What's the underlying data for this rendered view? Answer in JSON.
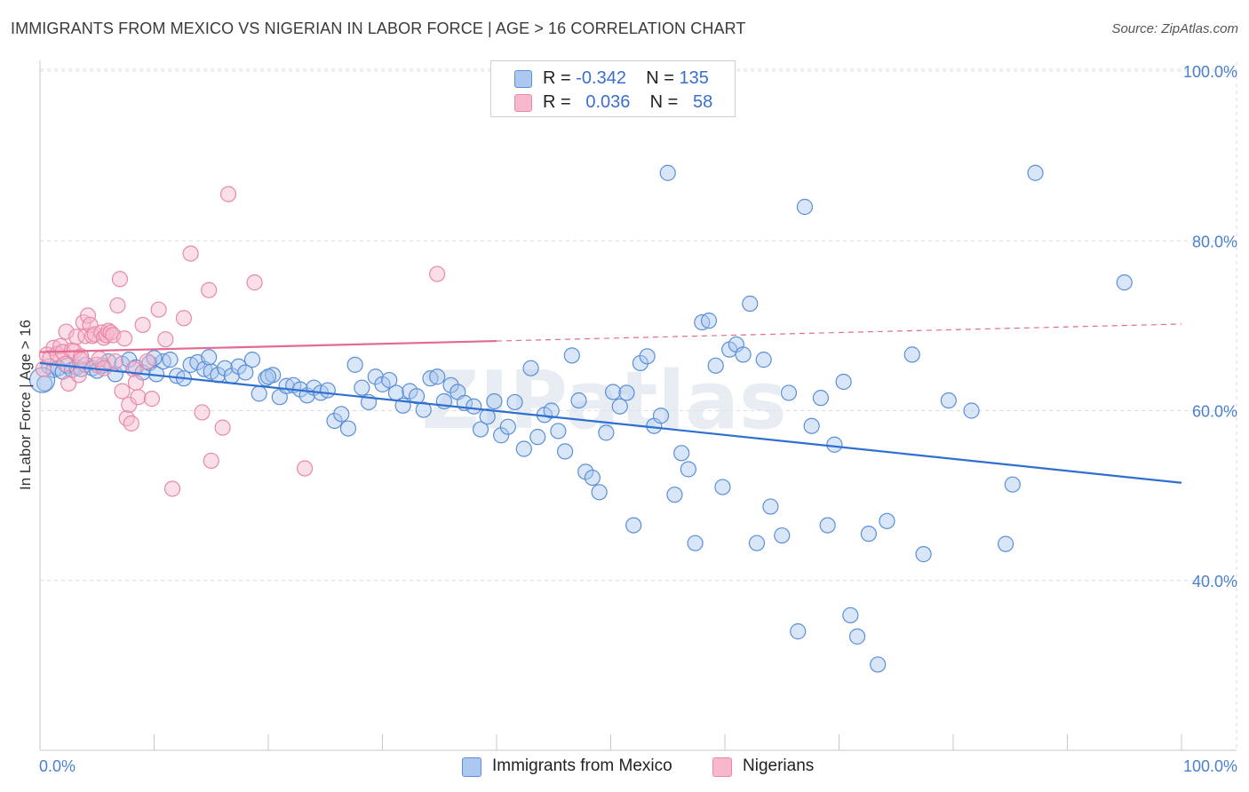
{
  "header": {
    "title": "IMMIGRANTS FROM MEXICO VS NIGERIAN IN LABOR FORCE | AGE > 16 CORRELATION CHART",
    "source": "Source: ZipAtlas.com"
  },
  "legend": {
    "rows": [
      {
        "r_label": "R =",
        "r_value": "-0.342",
        "n_label": "N =",
        "n_value": "135"
      },
      {
        "r_label": "R =",
        "r_value": "0.036",
        "n_label": "N =",
        "n_value": "58"
      }
    ]
  },
  "bottom_legend": {
    "items": [
      {
        "label": "Immigrants from Mexico"
      },
      {
        "label": "Nigerians"
      }
    ]
  },
  "colors": {
    "mexico_fill": "#aac8f0",
    "mexico_stroke": "#5b8fd8",
    "mexico_line": "#2f6fd0",
    "nigerian_fill": "#f7b8cc",
    "nigerian_stroke": "#e889a8",
    "nigerian_line": "#e26a93",
    "tick_text": "#4a7fd0",
    "grid": "#dcdcdc"
  },
  "chart_data": {
    "type": "scatter",
    "title": "IMMIGRANTS FROM MEXICO VS NIGERIAN IN LABOR FORCE | AGE > 16 CORRELATION CHART",
    "xlabel": "",
    "ylabel": "In Labor Force | Age > 16",
    "xlim": [
      0,
      100
    ],
    "ylim": [
      20,
      104
    ],
    "x_tick_labels": [
      "0.0%",
      "100.0%"
    ],
    "y_ticks": [
      40,
      60,
      80,
      100
    ],
    "y_tick_labels": [
      "40.0%",
      "60.0%",
      "80.0%",
      "100.0%"
    ],
    "grid": true,
    "legend_position": "top-center",
    "watermark": "ZIPatlas",
    "series": [
      {
        "name": "Immigrants from Mexico",
        "r": -0.342,
        "n": 135,
        "trend": {
          "x": [
            0,
            100
          ],
          "y": [
            65.6,
            51.5
          ],
          "style": "solid"
        },
        "points": [
          [
            0.4,
            63.2
          ],
          [
            0.8,
            65.2
          ],
          [
            1.2,
            64.8
          ],
          [
            1.6,
            65.0
          ],
          [
            2.0,
            64.6
          ],
          [
            2.4,
            65.3
          ],
          [
            2.8,
            64.8
          ],
          [
            3.2,
            65.1
          ],
          [
            3.6,
            64.9
          ],
          [
            4.0,
            65.4
          ],
          [
            4.6,
            65.0
          ],
          [
            5.0,
            64.7
          ],
          [
            5.5,
            65.3
          ],
          [
            6.0,
            65.8
          ],
          [
            6.6,
            64.3
          ],
          [
            7.2,
            65.5
          ],
          [
            7.8,
            66.0
          ],
          [
            8.4,
            65.1
          ],
          [
            9.0,
            64.5
          ],
          [
            9.6,
            65.6
          ],
          [
            10.2,
            64.3
          ],
          [
            10.8,
            65.8
          ],
          [
            11.4,
            66.0
          ],
          [
            12.0,
            64.1
          ],
          [
            12.6,
            63.8
          ],
          [
            13.2,
            65.4
          ],
          [
            13.8,
            65.7
          ],
          [
            14.4,
            64.9
          ],
          [
            15.0,
            64.6
          ],
          [
            15.6,
            64.2
          ],
          [
            16.2,
            65.0
          ],
          [
            16.8,
            64.1
          ],
          [
            17.4,
            65.2
          ],
          [
            18.0,
            64.5
          ],
          [
            18.6,
            66.0
          ],
          [
            19.2,
            62.0
          ],
          [
            19.8,
            63.8
          ],
          [
            20.4,
            64.2
          ],
          [
            21.0,
            61.6
          ],
          [
            21.6,
            62.9
          ],
          [
            22.2,
            63.0
          ],
          [
            22.8,
            62.5
          ],
          [
            23.4,
            61.8
          ],
          [
            24.0,
            62.7
          ],
          [
            24.6,
            62.1
          ],
          [
            25.2,
            62.4
          ],
          [
            25.8,
            58.8
          ],
          [
            26.4,
            59.6
          ],
          [
            27.0,
            57.9
          ],
          [
            27.6,
            65.4
          ],
          [
            28.2,
            62.7
          ],
          [
            28.8,
            61.0
          ],
          [
            29.4,
            64.0
          ],
          [
            30.0,
            63.1
          ],
          [
            30.6,
            63.6
          ],
          [
            31.2,
            62.1
          ],
          [
            31.8,
            60.6
          ],
          [
            32.4,
            62.3
          ],
          [
            33.0,
            61.7
          ],
          [
            33.6,
            60.1
          ],
          [
            34.2,
            63.8
          ],
          [
            34.8,
            64.0
          ],
          [
            35.4,
            61.1
          ],
          [
            36.0,
            63.0
          ],
          [
            36.6,
            62.2
          ],
          [
            37.2,
            60.9
          ],
          [
            38.0,
            60.5
          ],
          [
            38.6,
            57.8
          ],
          [
            39.2,
            59.3
          ],
          [
            39.8,
            61.1
          ],
          [
            40.4,
            57.1
          ],
          [
            41.0,
            58.1
          ],
          [
            41.6,
            61.0
          ],
          [
            42.4,
            55.5
          ],
          [
            43.0,
            65.0
          ],
          [
            43.6,
            56.9
          ],
          [
            44.2,
            59.5
          ],
          [
            44.8,
            60.0
          ],
          [
            45.4,
            57.6
          ],
          [
            46.0,
            55.2
          ],
          [
            46.6,
            66.5
          ],
          [
            47.2,
            61.2
          ],
          [
            47.8,
            52.8
          ],
          [
            48.4,
            52.1
          ],
          [
            49.0,
            50.4
          ],
          [
            49.6,
            57.4
          ],
          [
            50.2,
            62.2
          ],
          [
            50.8,
            60.5
          ],
          [
            51.4,
            62.1
          ],
          [
            52.0,
            46.5
          ],
          [
            52.6,
            65.6
          ],
          [
            53.2,
            66.4
          ],
          [
            53.8,
            58.2
          ],
          [
            54.4,
            59.4
          ],
          [
            55.0,
            88.0
          ],
          [
            55.6,
            50.1
          ],
          [
            56.2,
            55.0
          ],
          [
            56.8,
            53.1
          ],
          [
            57.4,
            44.4
          ],
          [
            58.0,
            70.4
          ],
          [
            58.6,
            70.6
          ],
          [
            59.2,
            65.3
          ],
          [
            59.8,
            51.0
          ],
          [
            60.4,
            67.2
          ],
          [
            61.0,
            67.8
          ],
          [
            61.6,
            66.6
          ],
          [
            62.2,
            72.6
          ],
          [
            62.8,
            44.4
          ],
          [
            63.4,
            66.0
          ],
          [
            64.0,
            48.7
          ],
          [
            65.0,
            45.3
          ],
          [
            65.6,
            62.1
          ],
          [
            66.4,
            34.0
          ],
          [
            67.0,
            84.0
          ],
          [
            67.6,
            58.2
          ],
          [
            68.4,
            61.5
          ],
          [
            69.0,
            46.5
          ],
          [
            69.6,
            56.0
          ],
          [
            70.4,
            63.4
          ],
          [
            71.0,
            35.9
          ],
          [
            71.6,
            33.4
          ],
          [
            72.6,
            45.5
          ],
          [
            73.4,
            30.1
          ],
          [
            74.2,
            47.0
          ],
          [
            76.4,
            66.6
          ],
          [
            77.4,
            43.1
          ],
          [
            79.6,
            61.2
          ],
          [
            81.6,
            60.0
          ],
          [
            84.6,
            44.3
          ],
          [
            85.2,
            51.3
          ],
          [
            87.2,
            88.0
          ],
          [
            95.0,
            75.1
          ],
          [
            10.0,
            66.2
          ],
          [
            14.8,
            66.3
          ],
          [
            20.0,
            64.0
          ]
        ]
      },
      {
        "name": "Nigerians",
        "r": 0.036,
        "n": 58,
        "trend": {
          "x": [
            0,
            40,
            100
          ],
          "y": [
            66.9,
            68.2,
            70.2
          ],
          "solid_until": 40
        },
        "points": [
          [
            0.3,
            64.9
          ],
          [
            0.6,
            66.6
          ],
          [
            0.9,
            66.2
          ],
          [
            1.2,
            67.4
          ],
          [
            1.5,
            66.7
          ],
          [
            1.8,
            67.6
          ],
          [
            2.0,
            66.9
          ],
          [
            2.3,
            69.3
          ],
          [
            2.5,
            63.2
          ],
          [
            2.8,
            67.1
          ],
          [
            3.0,
            67.0
          ],
          [
            3.2,
            68.7
          ],
          [
            3.4,
            64.2
          ],
          [
            3.6,
            66.4
          ],
          [
            3.8,
            70.4
          ],
          [
            4.0,
            68.8
          ],
          [
            4.2,
            71.2
          ],
          [
            4.4,
            70.1
          ],
          [
            4.6,
            68.8
          ],
          [
            4.8,
            69.0
          ],
          [
            5.0,
            65.4
          ],
          [
            5.2,
            66.1
          ],
          [
            5.4,
            69.2
          ],
          [
            5.6,
            68.6
          ],
          [
            5.8,
            68.9
          ],
          [
            6.0,
            69.4
          ],
          [
            6.2,
            69.2
          ],
          [
            6.4,
            68.9
          ],
          [
            6.6,
            65.8
          ],
          [
            6.8,
            72.4
          ],
          [
            7.0,
            75.5
          ],
          [
            7.2,
            62.3
          ],
          [
            7.4,
            68.5
          ],
          [
            7.6,
            59.1
          ],
          [
            7.8,
            60.7
          ],
          [
            8.0,
            58.5
          ],
          [
            8.2,
            64.9
          ],
          [
            8.4,
            63.3
          ],
          [
            8.6,
            61.6
          ],
          [
            9.0,
            70.1
          ],
          [
            9.4,
            65.8
          ],
          [
            9.8,
            61.4
          ],
          [
            10.4,
            71.9
          ],
          [
            11.0,
            68.4
          ],
          [
            11.6,
            50.8
          ],
          [
            12.6,
            70.9
          ],
          [
            13.2,
            78.5
          ],
          [
            14.2,
            59.8
          ],
          [
            14.8,
            74.2
          ],
          [
            15.0,
            54.1
          ],
          [
            16.0,
            58.0
          ],
          [
            16.5,
            85.5
          ],
          [
            18.8,
            75.1
          ],
          [
            23.2,
            53.2
          ],
          [
            34.8,
            76.1
          ],
          [
            3.6,
            66.0
          ],
          [
            5.6,
            65.0
          ],
          [
            2.2,
            65.5
          ]
        ]
      }
    ]
  }
}
